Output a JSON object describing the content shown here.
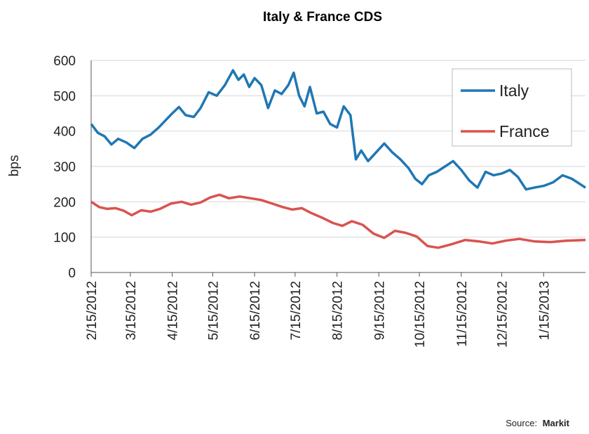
{
  "chart_data": {
    "type": "line",
    "title": "Italy & France CDS",
    "ylabel": "bps",
    "xlabel": "",
    "ylim": [
      0,
      600
    ],
    "yticks": [
      0,
      100,
      200,
      300,
      400,
      500,
      600
    ],
    "xlim": [
      "2012-02-15",
      "2013-02-15"
    ],
    "xticks": [
      "2/15/2012",
      "3/15/2012",
      "4/15/2012",
      "5/15/2012",
      "6/15/2012",
      "7/15/2012",
      "8/15/2012",
      "9/15/2012",
      "10/15/2012",
      "11/15/2012",
      "12/15/2012",
      "1/15/2013"
    ],
    "grid": "horizontal",
    "legend_position": "top-right",
    "source_label": "Source:",
    "source_name": "Markit",
    "series": [
      {
        "name": "Italy",
        "color": "#1f77b4",
        "points": [
          [
            "2012-02-15",
            420
          ],
          [
            "2012-02-20",
            395
          ],
          [
            "2012-02-25",
            385
          ],
          [
            "2012-03-01",
            362
          ],
          [
            "2012-03-06",
            378
          ],
          [
            "2012-03-12",
            368
          ],
          [
            "2012-03-18",
            352
          ],
          [
            "2012-03-24",
            378
          ],
          [
            "2012-03-30",
            390
          ],
          [
            "2012-04-05",
            410
          ],
          [
            "2012-04-10",
            430
          ],
          [
            "2012-04-15",
            450
          ],
          [
            "2012-04-20",
            468
          ],
          [
            "2012-04-25",
            445
          ],
          [
            "2012-05-01",
            440
          ],
          [
            "2012-05-06",
            465
          ],
          [
            "2012-05-12",
            510
          ],
          [
            "2012-05-18",
            500
          ],
          [
            "2012-05-24",
            530
          ],
          [
            "2012-05-30",
            572
          ],
          [
            "2012-06-03",
            545
          ],
          [
            "2012-06-07",
            560
          ],
          [
            "2012-06-11",
            525
          ],
          [
            "2012-06-15",
            550
          ],
          [
            "2012-06-20",
            530
          ],
          [
            "2012-06-25",
            465
          ],
          [
            "2012-06-30",
            515
          ],
          [
            "2012-07-05",
            505
          ],
          [
            "2012-07-10",
            530
          ],
          [
            "2012-07-14",
            565
          ],
          [
            "2012-07-18",
            500
          ],
          [
            "2012-07-22",
            470
          ],
          [
            "2012-07-26",
            525
          ],
          [
            "2012-07-31",
            450
          ],
          [
            "2012-08-05",
            455
          ],
          [
            "2012-08-10",
            420
          ],
          [
            "2012-08-15",
            410
          ],
          [
            "2012-08-20",
            470
          ],
          [
            "2012-08-25",
            445
          ],
          [
            "2012-08-29",
            320
          ],
          [
            "2012-09-02",
            345
          ],
          [
            "2012-09-07",
            315
          ],
          [
            "2012-09-13",
            340
          ],
          [
            "2012-09-19",
            365
          ],
          [
            "2012-09-25",
            340
          ],
          [
            "2012-10-01",
            320
          ],
          [
            "2012-10-07",
            295
          ],
          [
            "2012-10-12",
            265
          ],
          [
            "2012-10-17",
            250
          ],
          [
            "2012-10-22",
            275
          ],
          [
            "2012-10-28",
            285
          ],
          [
            "2012-11-03",
            300
          ],
          [
            "2012-11-09",
            315
          ],
          [
            "2012-11-15",
            290
          ],
          [
            "2012-11-21",
            260
          ],
          [
            "2012-11-27",
            240
          ],
          [
            "2012-12-03",
            285
          ],
          [
            "2012-12-09",
            275
          ],
          [
            "2012-12-15",
            280
          ],
          [
            "2012-12-21",
            290
          ],
          [
            "2012-12-27",
            270
          ],
          [
            "2013-01-02",
            235
          ],
          [
            "2013-01-08",
            240
          ],
          [
            "2013-01-15",
            245
          ],
          [
            "2013-01-22",
            255
          ],
          [
            "2013-01-29",
            275
          ],
          [
            "2013-02-05",
            265
          ],
          [
            "2013-02-15",
            240
          ]
        ]
      },
      {
        "name": "France",
        "color": "#d9534f",
        "points": [
          [
            "2012-02-15",
            200
          ],
          [
            "2012-02-21",
            185
          ],
          [
            "2012-02-27",
            180
          ],
          [
            "2012-03-04",
            182
          ],
          [
            "2012-03-10",
            175
          ],
          [
            "2012-03-16",
            162
          ],
          [
            "2012-03-23",
            176
          ],
          [
            "2012-03-30",
            172
          ],
          [
            "2012-04-06",
            180
          ],
          [
            "2012-04-14",
            195
          ],
          [
            "2012-04-22",
            200
          ],
          [
            "2012-04-29",
            192
          ],
          [
            "2012-05-06",
            198
          ],
          [
            "2012-05-13",
            212
          ],
          [
            "2012-05-20",
            220
          ],
          [
            "2012-05-27",
            210
          ],
          [
            "2012-06-04",
            215
          ],
          [
            "2012-06-12",
            210
          ],
          [
            "2012-06-20",
            205
          ],
          [
            "2012-06-28",
            195
          ],
          [
            "2012-07-06",
            185
          ],
          [
            "2012-07-13",
            178
          ],
          [
            "2012-07-20",
            182
          ],
          [
            "2012-07-27",
            168
          ],
          [
            "2012-08-04",
            155
          ],
          [
            "2012-08-12",
            140
          ],
          [
            "2012-08-19",
            132
          ],
          [
            "2012-08-26",
            145
          ],
          [
            "2012-09-03",
            135
          ],
          [
            "2012-09-11",
            110
          ],
          [
            "2012-09-19",
            98
          ],
          [
            "2012-09-27",
            118
          ],
          [
            "2012-10-05",
            112
          ],
          [
            "2012-10-13",
            102
          ],
          [
            "2012-10-21",
            75
          ],
          [
            "2012-10-29",
            70
          ],
          [
            "2012-11-08",
            80
          ],
          [
            "2012-11-18",
            92
          ],
          [
            "2012-11-28",
            88
          ],
          [
            "2012-12-08",
            82
          ],
          [
            "2012-12-18",
            90
          ],
          [
            "2012-12-28",
            95
          ],
          [
            "2013-01-08",
            88
          ],
          [
            "2013-01-20",
            86
          ],
          [
            "2013-02-01",
            90
          ],
          [
            "2013-02-15",
            92
          ]
        ]
      }
    ]
  }
}
